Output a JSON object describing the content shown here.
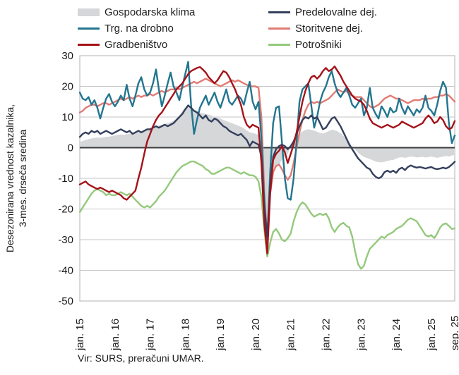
{
  "legend": {
    "items": [
      {
        "label": "Gospodarska klima",
        "color": "#d5d7d9",
        "type": "area"
      },
      {
        "label": "Trg. na drobno",
        "color": "#23758f",
        "type": "line"
      },
      {
        "label": "Gradbeništvo",
        "color": "#a41219",
        "type": "line"
      },
      {
        "label": "Predelovalne dej.",
        "color": "#333f5c",
        "type": "line"
      },
      {
        "label": "Storitvene dej.",
        "color": "#e07b74",
        "type": "line"
      },
      {
        "label": "Potrošniki",
        "color": "#94c97d",
        "type": "line"
      }
    ]
  },
  "axis": {
    "y_label_line1": "Desezonirana vrednost kazalnika,",
    "y_label_line2": "3-mes. drseča sredina"
  },
  "source": "Vir: SURS, preračuni UMAR.",
  "chart_data": {
    "type": "line",
    "x_unit": "month",
    "n_points": 129,
    "x_start": "jan. 15",
    "x_end": "sep. 25",
    "ylim": [
      -50,
      30
    ],
    "y_ticks": [
      30,
      20,
      10,
      0,
      -10,
      -20,
      -30,
      -40,
      -50
    ],
    "grid": "horizontal",
    "legend_position": "top",
    "colors": {
      "zero_line": "#3c3c3c",
      "gridline": "#c6c6c6",
      "border": "#bfbfbf"
    },
    "x_ticks": [
      {
        "index": 0,
        "label": "jan. 15"
      },
      {
        "index": 12,
        "label": "jan. 16"
      },
      {
        "index": 24,
        "label": "jan. 17"
      },
      {
        "index": 36,
        "label": "jan. 18"
      },
      {
        "index": 48,
        "label": "jan. 19"
      },
      {
        "index": 60,
        "label": "jan. 20"
      },
      {
        "index": 72,
        "label": "jan. 21"
      },
      {
        "index": 84,
        "label": "jan. 22"
      },
      {
        "index": 96,
        "label": "jan. 23"
      },
      {
        "index": 108,
        "label": "jan. 24"
      },
      {
        "index": 120,
        "label": "jan. 25"
      },
      {
        "index": 128,
        "label": "sep. 25"
      }
    ],
    "series": [
      {
        "name": "Gospodarska klima",
        "type": "area",
        "color": "#d5d7d9",
        "values": [
          1.8,
          2.2,
          2.5,
          2.8,
          3.0,
          3.2,
          3.3,
          3.2,
          3.4,
          3.5,
          3.6,
          3.8,
          4.0,
          4.2,
          4.3,
          4.2,
          4.4,
          4.6,
          4.5,
          4.7,
          5.0,
          5.2,
          5.5,
          6.0,
          6.3,
          6.6,
          7.0,
          7.2,
          7.5,
          7.8,
          8.0,
          8.3,
          8.8,
          9.5,
          10.5,
          12.0,
          13.0,
          13.4,
          13.0,
          12.5,
          12.0,
          11.5,
          11.2,
          11.0,
          10.8,
          10.5,
          10.0,
          9.8,
          9.5,
          9.0,
          8.7,
          8.3,
          8.0,
          7.6,
          7.2,
          6.8,
          6.3,
          5.6,
          5.0,
          4.8,
          4.5,
          4.2,
          -2.0,
          -18.0,
          -27.0,
          -13.0,
          -8.0,
          -6.5,
          -5.5,
          -4.0,
          -2.8,
          -2.0,
          0.2,
          1.5,
          3.2,
          4.6,
          5.3,
          5.8,
          6.0,
          5.8,
          5.6,
          5.2,
          4.8,
          4.6,
          5.0,
          5.4,
          5.9,
          5.7,
          5.3,
          4.7,
          3.8,
          2.7,
          1.6,
          0.5,
          -0.6,
          -1.6,
          -2.4,
          -3.0,
          -3.4,
          -3.7,
          -4.1,
          -4.5,
          -4.7,
          -4.8,
          -4.6,
          -4.3,
          -4.1,
          -4.0,
          -3.6,
          -3.2,
          -3.1,
          -3.3,
          -3.1,
          -2.9,
          -3.0,
          -3.2,
          -3.1,
          -3.0,
          -3.2,
          -3.1,
          -2.9,
          -3.1,
          -3.3,
          -3.1,
          -2.9,
          -2.7,
          -2.9,
          -2.6,
          -2.3
        ]
      },
      {
        "name": "Potrošniki",
        "type": "line",
        "color": "#94c97d",
        "values": [
          -21,
          -19.5,
          -18,
          -16.5,
          -15,
          -14,
          -13.5,
          -14,
          -14.5,
          -15.5,
          -15,
          -15.5,
          -15.5,
          -15,
          -14.5,
          -15,
          -15.5,
          -15,
          -16,
          -17,
          -18,
          -19,
          -19.5,
          -19,
          -19.5,
          -18.5,
          -17.5,
          -16,
          -15,
          -14,
          -12.5,
          -11,
          -9.5,
          -8,
          -7,
          -6,
          -5.5,
          -5,
          -4.5,
          -4.5,
          -5,
          -5.5,
          -6,
          -7,
          -7.5,
          -8.5,
          -8.5,
          -8,
          -7.5,
          -7,
          -6.5,
          -6.5,
          -7,
          -7.5,
          -8,
          -8.5,
          -8,
          -8.5,
          -9,
          -9,
          -9.5,
          -11,
          -16,
          -27,
          -35.5,
          -31,
          -27.5,
          -26.5,
          -28,
          -30,
          -30.5,
          -29.5,
          -28,
          -24,
          -21,
          -19,
          -17.8,
          -18.5,
          -20,
          -21.5,
          -22.5,
          -22,
          -21.5,
          -22,
          -21.5,
          -23,
          -26,
          -27.5,
          -26,
          -25,
          -24.5,
          -25.5,
          -26,
          -29,
          -34,
          -38,
          -39.5,
          -38.5,
          -35.5,
          -33,
          -32,
          -31,
          -30,
          -29,
          -29.5,
          -28.5,
          -28,
          -27.5,
          -26.5,
          -26,
          -25.5,
          -24.5,
          -23.5,
          -23,
          -23.5,
          -24,
          -25.5,
          -27,
          -28.5,
          -29,
          -28.5,
          -29.5,
          -28,
          -26,
          -25,
          -24.7,
          -25.5,
          -26.5,
          -26.3
        ]
      },
      {
        "name": "Storitvene dej.",
        "type": "line",
        "color": "#e07b74",
        "values": [
          11.5,
          12,
          13,
          13.5,
          14,
          14,
          13.5,
          14,
          14.5,
          14.5,
          14,
          14.5,
          15,
          15.5,
          16,
          15.5,
          16,
          16.5,
          16,
          16.5,
          17,
          16.5,
          17,
          17,
          17.5,
          17,
          17.5,
          18,
          18.5,
          18,
          18.5,
          19,
          19,
          19.5,
          19,
          19.5,
          20,
          20.5,
          21,
          21.5,
          21,
          21.5,
          22,
          22.5,
          22,
          21.5,
          21,
          20.5,
          20,
          20.5,
          21,
          21.5,
          22,
          21.5,
          22,
          21.5,
          21,
          20.5,
          20,
          20,
          20,
          19.5,
          10,
          -15,
          -30,
          -15,
          -8,
          -6,
          -5.5,
          -7,
          -9,
          -10.5,
          -9,
          -5,
          0,
          5,
          9,
          12,
          14,
          15,
          14.5,
          15,
          14.5,
          15,
          15.5,
          16,
          17,
          18,
          19,
          18.5,
          18,
          18.5,
          17.5,
          17,
          16.5,
          16.5,
          16.5,
          15.5,
          14.5,
          13.5,
          13,
          13.5,
          14,
          15,
          16,
          16.5,
          17,
          16.5,
          16,
          16,
          15.5,
          15,
          14.5,
          15,
          15.5,
          15.5,
          15.5,
          16,
          15.5,
          16,
          16,
          16.5,
          16.5,
          17,
          17,
          17.5,
          17,
          16,
          15
        ]
      },
      {
        "name": "Trg. na drobno",
        "type": "line",
        "color": "#23758f",
        "values": [
          18,
          16,
          15.5,
          16.5,
          14,
          15.5,
          13,
          9.5,
          13,
          16,
          17.5,
          15,
          13.5,
          15,
          17,
          15.5,
          20.5,
          16,
          13.5,
          17,
          21,
          23,
          19,
          17,
          18,
          21,
          25.5,
          19,
          13.5,
          17,
          21,
          24.5,
          20,
          18,
          15.5,
          20,
          24,
          28,
          14,
          4.5,
          9,
          13,
          15,
          17,
          14,
          16,
          18,
          15,
          13,
          16,
          19,
          15,
          14,
          15.5,
          17,
          16,
          14,
          18,
          21.5,
          15,
          12.5,
          15,
          3,
          -18,
          -30,
          -8,
          8,
          13,
          13.5,
          2,
          -10,
          -16.5,
          -17,
          -10,
          2,
          15,
          19,
          20,
          21,
          14,
          6.5,
          10,
          15,
          18,
          20,
          23,
          25,
          21,
          18,
          16.5,
          18,
          19.5,
          17,
          14,
          13,
          14.5,
          16,
          10.5,
          13,
          19.5,
          13,
          11,
          9.5,
          13.5,
          12,
          10,
          13,
          11.5,
          12,
          16,
          13,
          11,
          13.5,
          12,
          10.5,
          12.5,
          11.5,
          13,
          17,
          13,
          12,
          10.5,
          14,
          18.5,
          21.5,
          19.5,
          8,
          1.5,
          4
        ]
      },
      {
        "name": "Predelovalne dej.",
        "type": "line",
        "color": "#333f5c",
        "values": [
          3.5,
          4.5,
          5,
          4.5,
          5.5,
          5,
          5.5,
          4.5,
          5,
          5.5,
          5,
          4.5,
          5,
          5.5,
          6,
          5.5,
          5,
          5.5,
          4.5,
          5,
          5.5,
          5,
          5.5,
          6,
          6,
          6.5,
          7,
          6.5,
          7,
          7.5,
          7,
          7.5,
          8,
          9,
          10,
          11,
          12.5,
          13.8,
          13,
          12,
          11.5,
          10.5,
          9.5,
          10.5,
          9,
          8.5,
          9.5,
          9,
          8,
          7,
          6.5,
          5.5,
          5,
          4.5,
          4,
          4.5,
          3.5,
          2.5,
          0.5,
          2,
          1.5,
          1,
          -3,
          -20,
          -29,
          -12,
          -3,
          -0.5,
          0.5,
          1,
          0.5,
          -0.5,
          0.5,
          2,
          4.5,
          7,
          9,
          10,
          9.5,
          10.5,
          9.5,
          10,
          8,
          6,
          6.5,
          8,
          9.5,
          10,
          8.5,
          7,
          5,
          3,
          1,
          -0.5,
          -2,
          -3.5,
          -4.5,
          -5.5,
          -6.5,
          -7,
          -8.5,
          -9.5,
          -10,
          -9.5,
          -8,
          -7.5,
          -8,
          -7.5,
          -8.2,
          -7,
          -6.5,
          -7.3,
          -6.3,
          -5.8,
          -6.2,
          -6.5,
          -6.3,
          -6.5,
          -6.8,
          -6.5,
          -6.3,
          -6.8,
          -7,
          -6.8,
          -6.5,
          -6.8,
          -6.3,
          -5.5,
          -4.6
        ]
      },
      {
        "name": "Gradbeništvo",
        "type": "line",
        "color": "#a41219",
        "values": [
          -12,
          -11.5,
          -11,
          -12,
          -12.5,
          -13,
          -13.5,
          -13,
          -13.5,
          -14,
          -14.5,
          -14,
          -14.5,
          -15,
          -15.5,
          -16.5,
          -17,
          -16,
          -15,
          -14,
          -10,
          -6.5,
          -2,
          2,
          4.5,
          7,
          9,
          10.5,
          11.5,
          13,
          14.5,
          16,
          17.5,
          19,
          20,
          21,
          22.5,
          24,
          25,
          25.5,
          26,
          26.3,
          25.5,
          24.5,
          23,
          22,
          21,
          22,
          23.5,
          25,
          24.5,
          23,
          21,
          19,
          16.5,
          14,
          10,
          7.5,
          6.5,
          7.5,
          7,
          6.5,
          -5,
          -25,
          -34.5,
          -15,
          -4,
          -2,
          -1,
          0.5,
          -1.5,
          -5,
          -2,
          1,
          5,
          10,
          15,
          18.5,
          21,
          23,
          23.5,
          22.5,
          23.5,
          25,
          26,
          25,
          25.5,
          26.5,
          25,
          23.5,
          21.5,
          20,
          18.5,
          17,
          16,
          15.5,
          15,
          14,
          12,
          9.5,
          8,
          7.5,
          7,
          6.5,
          7,
          7.5,
          7,
          6.5,
          7,
          7.5,
          8.5,
          8,
          7.5,
          7,
          6.5,
          7,
          7.5,
          8,
          9.5,
          10.5,
          9.5,
          8,
          8.5,
          10,
          9,
          7,
          6,
          6.5,
          8.7
        ]
      }
    ]
  }
}
